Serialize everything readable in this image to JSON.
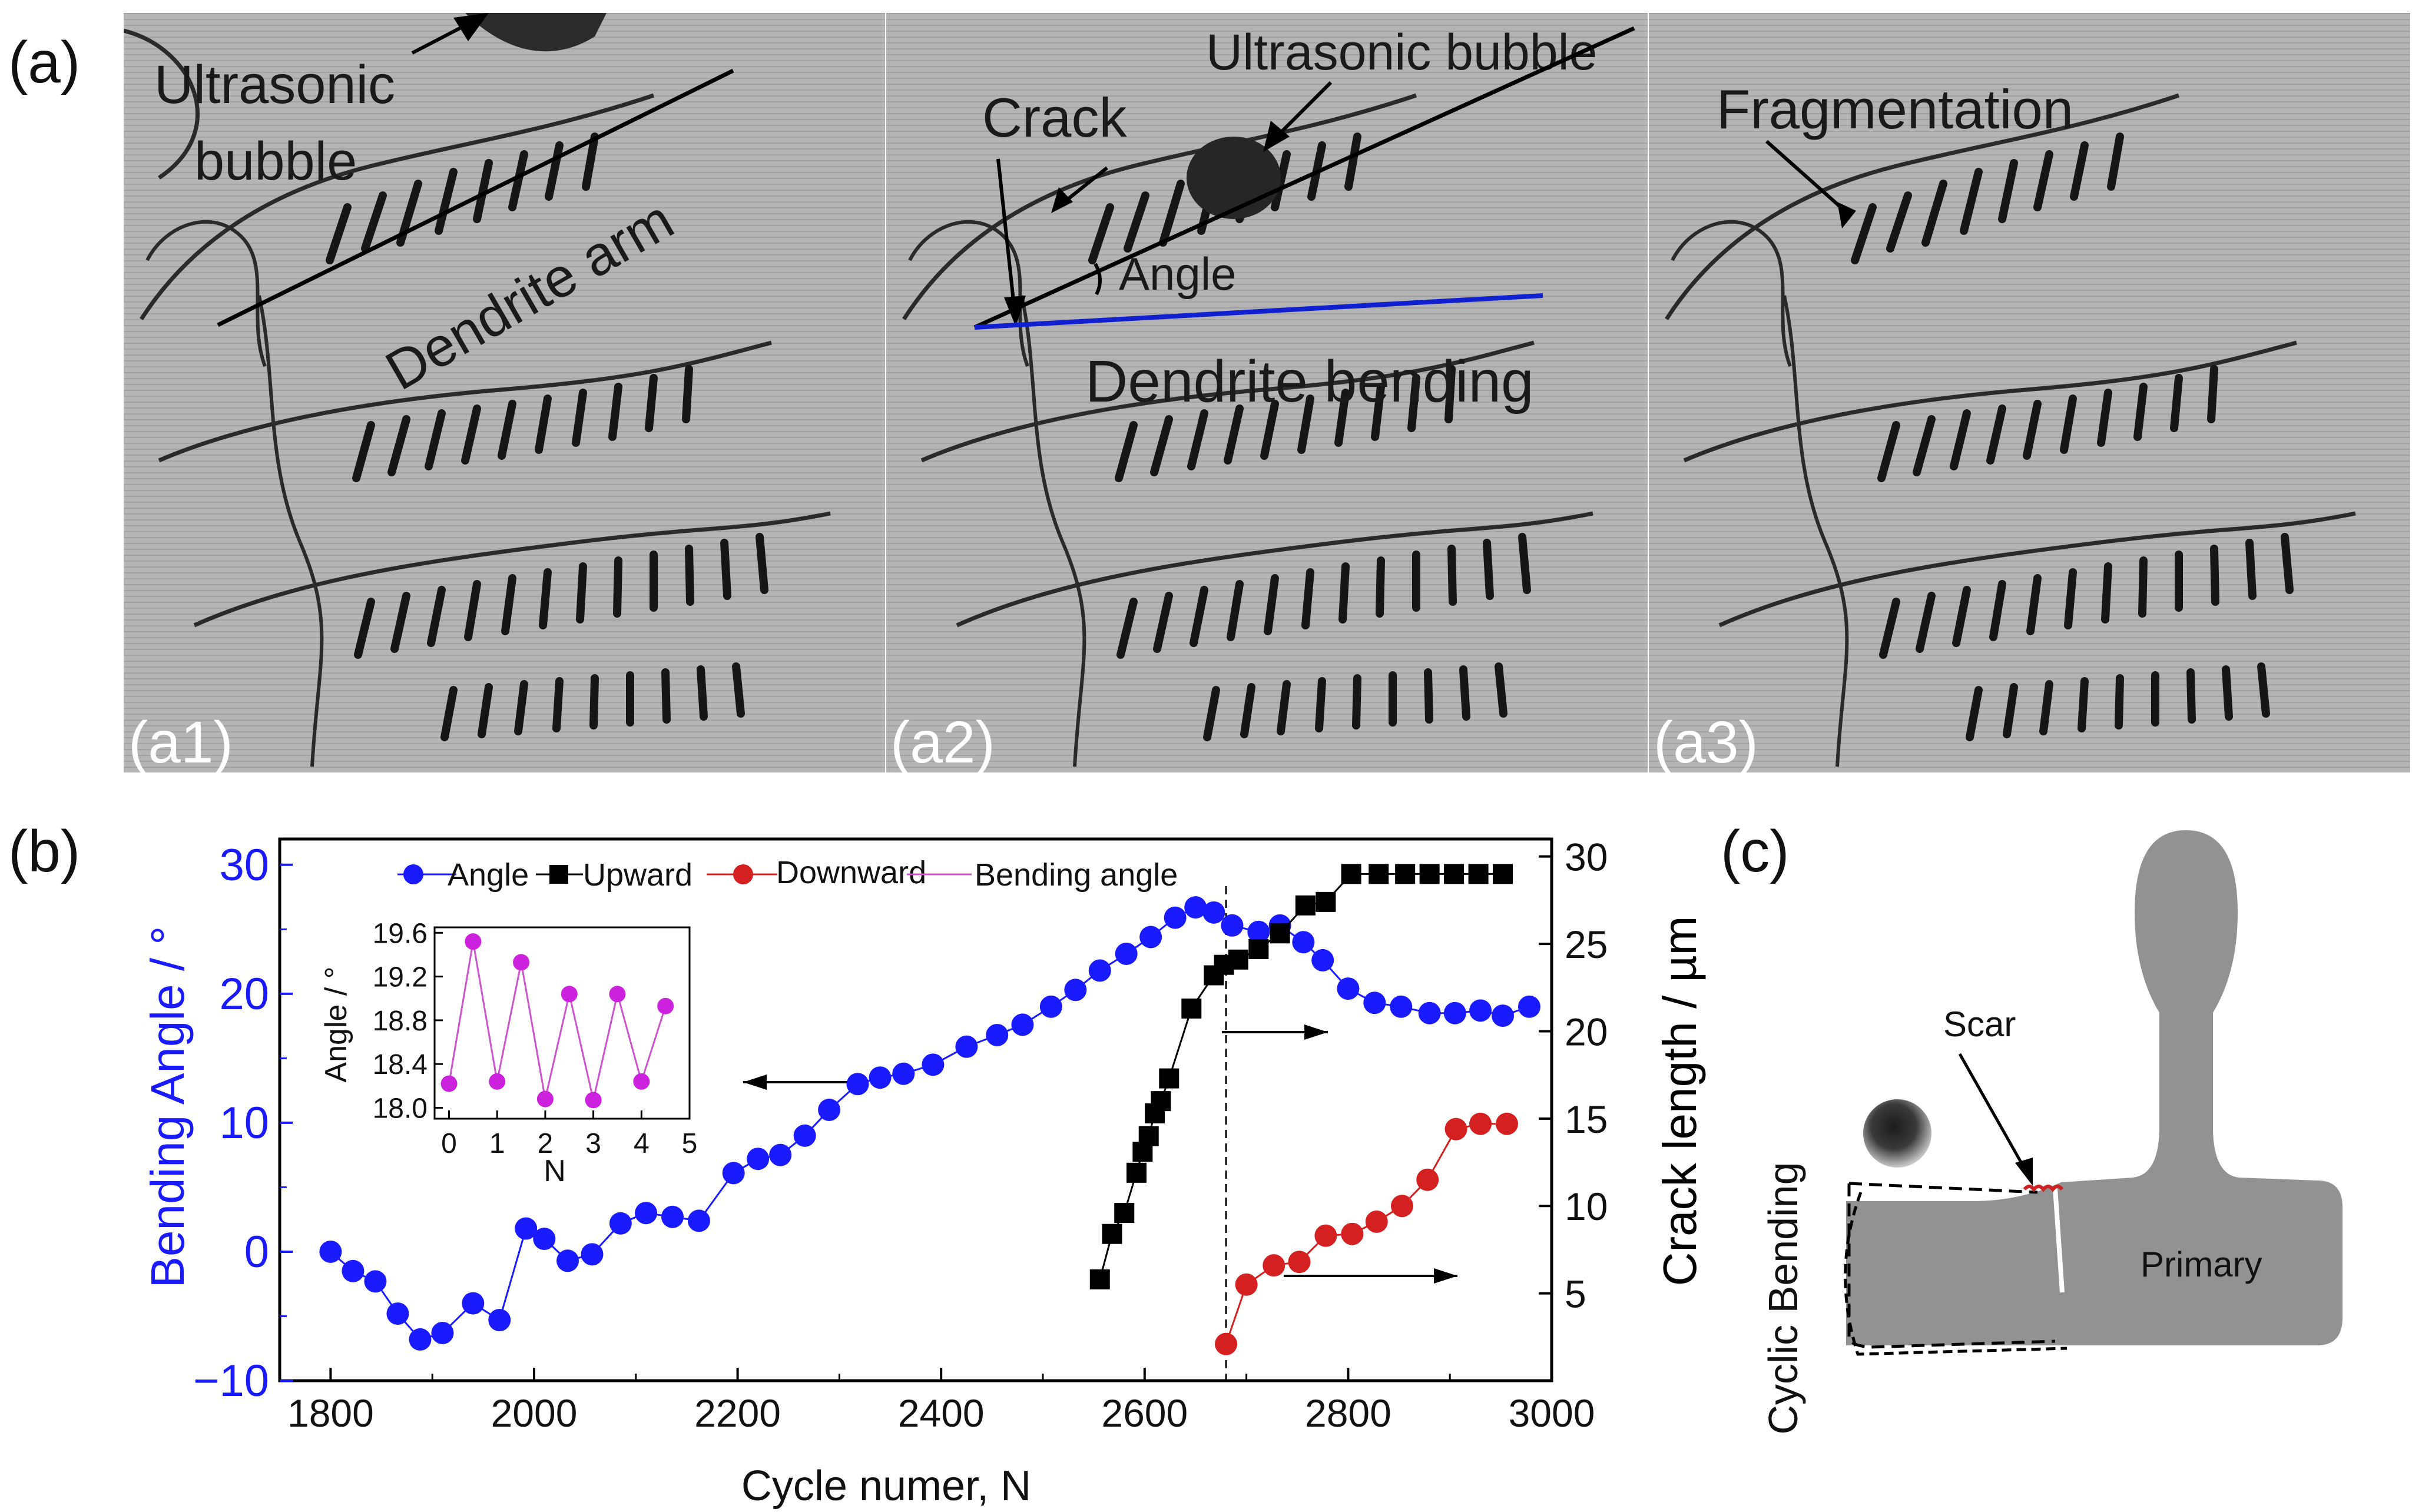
{
  "panel_a": {
    "label": "(a)",
    "a1": {
      "label": "(a1)",
      "bubble_label_line1": "Ultrasonic",
      "bubble_label_line2": "bubble",
      "arm_label": "Dendrite arm"
    },
    "a2": {
      "label": "(a2)",
      "bubble_label": "Ultrasonic bubble",
      "crack_label": "Crack",
      "angle_label": "Angle",
      "bending_label": "Dendrite bending"
    },
    "a3": {
      "label": "(a3)",
      "fragmentation_label": "Fragmentation"
    }
  },
  "panel_b": {
    "label": "(b)",
    "chart_data": [
      {
        "type": "line",
        "title": "",
        "xlabel": "Cycle numer, N",
        "ylabel_left": "Bending Angle / °",
        "ylabel_right": "Crack length / µm",
        "xlim": [
          1750,
          3000
        ],
        "ylim_left": [
          -10,
          32
        ],
        "ylim_right": [
          0,
          31
        ],
        "x_ticks": [
          1800,
          2000,
          2200,
          2400,
          2600,
          2800,
          3000
        ],
        "y_ticks_left": [
          -10,
          0,
          10,
          20,
          30
        ],
        "y_ticks_right": [
          5,
          10,
          15,
          20,
          25,
          30
        ],
        "legend": [
          "Angle",
          "Upward",
          "Downward",
          "Bending angle"
        ],
        "legend_position": "top",
        "colors": {
          "angle": "#1a1aff",
          "upward": "#000000",
          "downward": "#d42020",
          "bending": "#cc55cc"
        },
        "series": [
          {
            "name": "Angle",
            "axis": "left",
            "marker": "circle",
            "points": [
              [
                1800,
                0
              ],
              [
                1822,
                -1.5
              ],
              [
                1844,
                -2.3
              ],
              [
                1866,
                -4.8
              ],
              [
                1888,
                -6.8
              ],
              [
                1910,
                -6.3
              ],
              [
                1940,
                -4
              ],
              [
                1966,
                -5.3
              ],
              [
                1992,
                1.8
              ],
              [
                2010,
                1
              ],
              [
                2033,
                -0.7
              ],
              [
                2057,
                -0.2
              ],
              [
                2085,
                2.2
              ],
              [
                2110,
                3
              ],
              [
                2136,
                2.7
              ],
              [
                2162,
                2.4
              ],
              [
                2196,
                6.1
              ],
              [
                2220,
                7.2
              ],
              [
                2242,
                7.5
              ],
              [
                2266,
                9
              ],
              [
                2290,
                11
              ],
              [
                2318,
                13
              ],
              [
                2340,
                13.5
              ],
              [
                2363,
                13.8
              ],
              [
                2392,
                14.5
              ],
              [
                2425,
                15.9
              ],
              [
                2455,
                16.8
              ],
              [
                2480,
                17.6
              ],
              [
                2508,
                19
              ],
              [
                2532,
                20.3
              ],
              [
                2556,
                21.8
              ],
              [
                2582,
                23.1
              ],
              [
                2606,
                24.4
              ],
              [
                2630,
                25.9
              ],
              [
                2650,
                26.7
              ],
              [
                2668,
                26.3
              ],
              [
                2686,
                25.3
              ],
              [
                2712,
                24.8
              ],
              [
                2733,
                25.3
              ],
              [
                2756,
                24
              ],
              [
                2775,
                22.6
              ],
              [
                2800,
                20.4
              ],
              [
                2826,
                19.3
              ],
              [
                2852,
                19
              ],
              [
                2880,
                18.5
              ],
              [
                2905,
                18.5
              ],
              [
                2930,
                18.7
              ],
              [
                2952,
                18.3
              ],
              [
                2978,
                19
              ]
            ]
          },
          {
            "name": "Upward",
            "axis": "right",
            "marker": "square",
            "points": [
              [
                2556,
                5.8
              ],
              [
                2568,
                8.4
              ],
              [
                2580,
                9.6
              ],
              [
                2592,
                11.9
              ],
              [
                2598,
                13.1
              ],
              [
                2604,
                14
              ],
              [
                2610,
                15.3
              ],
              [
                2616,
                16
              ],
              [
                2624,
                17.3
              ],
              [
                2646,
                21.3
              ],
              [
                2668,
                23.2
              ],
              [
                2678,
                23.8
              ],
              [
                2692,
                24.1
              ],
              [
                2712,
                24.7
              ],
              [
                2733,
                25.6
              ],
              [
                2758,
                27.2
              ],
              [
                2778,
                27.4
              ],
              [
                2803,
                29
              ],
              [
                2830,
                29
              ],
              [
                2856,
                29
              ],
              [
                2880,
                29
              ],
              [
                2904,
                29
              ],
              [
                2928,
                29
              ],
              [
                2952,
                29
              ]
            ]
          },
          {
            "name": "Downward",
            "axis": "right",
            "marker": "circle",
            "points": [
              [
                2680,
                2.1
              ],
              [
                2700,
                5.5
              ],
              [
                2727,
                6.6
              ],
              [
                2752,
                6.8
              ],
              [
                2778,
                8.3
              ],
              [
                2804,
                8.4
              ],
              [
                2828,
                9.1
              ],
              [
                2853,
                10
              ],
              [
                2878,
                11.5
              ],
              [
                2906,
                14.4
              ],
              [
                2930,
                14.7
              ],
              [
                2956,
                14.7
              ]
            ]
          }
        ],
        "annotations": {
          "vertical_dashed_line_x": 2680,
          "arrows": [
            "left arrow toward Bending Angle axis",
            "right arrow toward Crack length axis",
            "right arrow toward Crack length axis"
          ]
        }
      },
      {
        "type": "line",
        "inset": true,
        "xlabel": "N",
        "ylabel": "Angle / °",
        "xlim": [
          -0.3,
          5
        ],
        "ylim": [
          17.9,
          19.65
        ],
        "x_ticks": [
          0,
          1,
          2,
          3,
          4,
          5
        ],
        "y_ticks": [
          "18.0",
          "18.4",
          "18.8",
          "19.2",
          "19.6"
        ],
        "series": [
          {
            "name": "Bending angle",
            "marker": "circle",
            "points": [
              [
                0,
                18.22
              ],
              [
                0.5,
                19.52
              ],
              [
                1,
                18.24
              ],
              [
                1.5,
                19.33
              ],
              [
                2,
                18.08
              ],
              [
                2.5,
                19.04
              ],
              [
                3,
                18.07
              ],
              [
                3.5,
                19.04
              ],
              [
                4,
                18.24
              ],
              [
                4.5,
                18.93
              ]
            ]
          }
        ]
      }
    ]
  },
  "panel_c": {
    "label": "(c)",
    "scar_label": "Scar",
    "primary_label": "Primary",
    "bending_label": "Cyclic Bending"
  }
}
